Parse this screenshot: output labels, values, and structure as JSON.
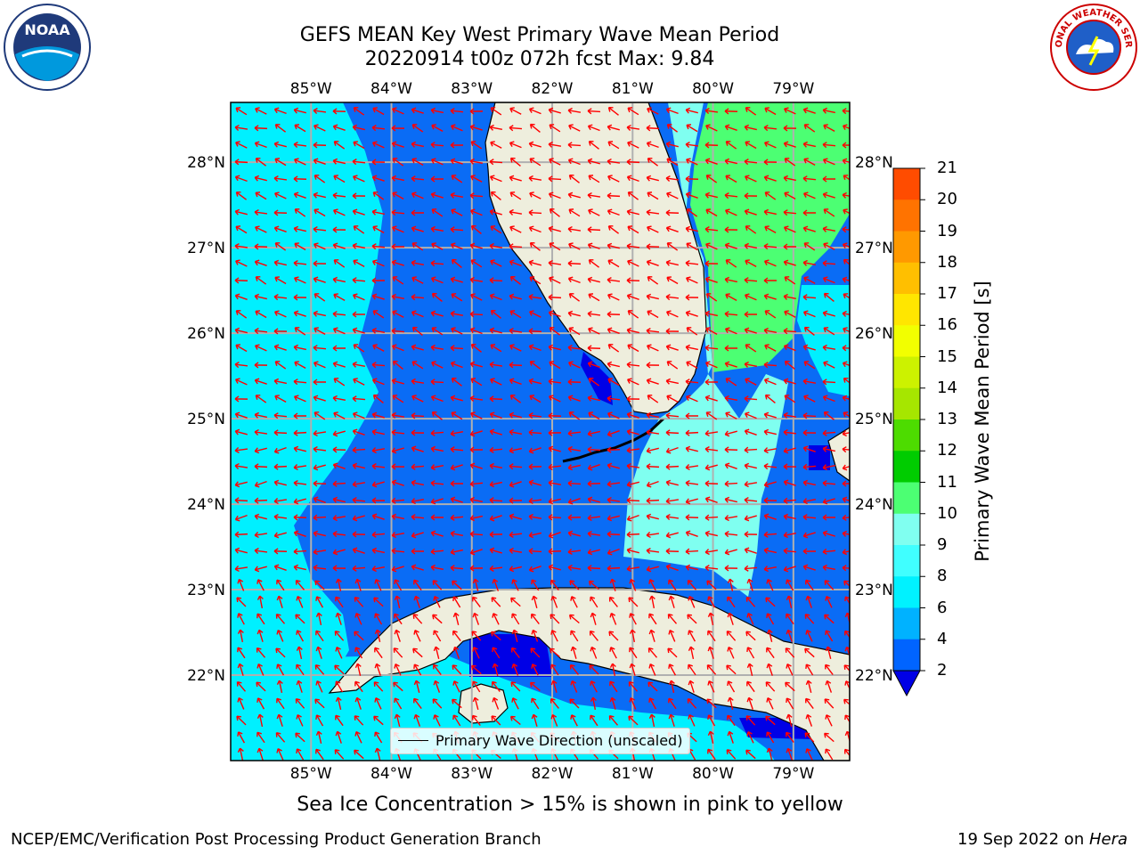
{
  "title_line1": "GEFS MEAN Key West Primary Wave Mean Period",
  "title_line2": "20220914 t00z 072h fcst   Max: 9.84",
  "lon_labels": [
    "85°W",
    "84°W",
    "83°W",
    "82°W",
    "81°W",
    "80°W",
    "79°W"
  ],
  "lat_labels": [
    "28°N",
    "27°N",
    "26°N",
    "25°N",
    "24°N",
    "23°N",
    "22°N"
  ],
  "legend_label": "Primary Wave Direction (unscaled)",
  "colorbar": {
    "label": "Primary Wave Mean Period [s]",
    "ticks": [
      "21",
      "20",
      "19",
      "18",
      "17",
      "16",
      "15",
      "14",
      "13",
      "12",
      "11",
      "10",
      "9",
      "8",
      "6",
      "4",
      "2"
    ],
    "colors": [
      "#ff0000",
      "#ff2600",
      "#ff4c00",
      "#ff7300",
      "#ff9900",
      "#ffbf00",
      "#ffe600",
      "#f2ff00",
      "#ccf200",
      "#a6e600",
      "#4ddc00",
      "#00cc00",
      "#4cff73",
      "#80fff0",
      "#40ffff",
      "#00f2ff",
      "#00b2ff",
      "#0064ff",
      "#0000e6"
    ]
  },
  "map": {
    "lon_min": -86,
    "lon_max": -78.3,
    "lat_min": 21,
    "lat_max": 28.7,
    "wave_direction_deg": 60,
    "colors": {
      "ocean_deep": "#0a6cf5",
      "ocean_shallow": "#00f0ff",
      "ocean_light": "#7ffff0",
      "ocean_green": "#4cff73",
      "ocean_dark": "#0000e6",
      "land": "#eeeedd",
      "arrow": "#ff0000",
      "grid": "#b0b0b0"
    }
  },
  "ice_note": "Sea Ice Concentration > 15% is shown in pink to yellow",
  "footer_left": "NCEP/EMC/Verification Post Processing Product Generation Branch",
  "footer_date": "19 Sep 2022 on ",
  "footer_machine": "Hera",
  "logos": {
    "left": "NOAA",
    "right": "NATIONAL WEATHER SERVICE"
  }
}
